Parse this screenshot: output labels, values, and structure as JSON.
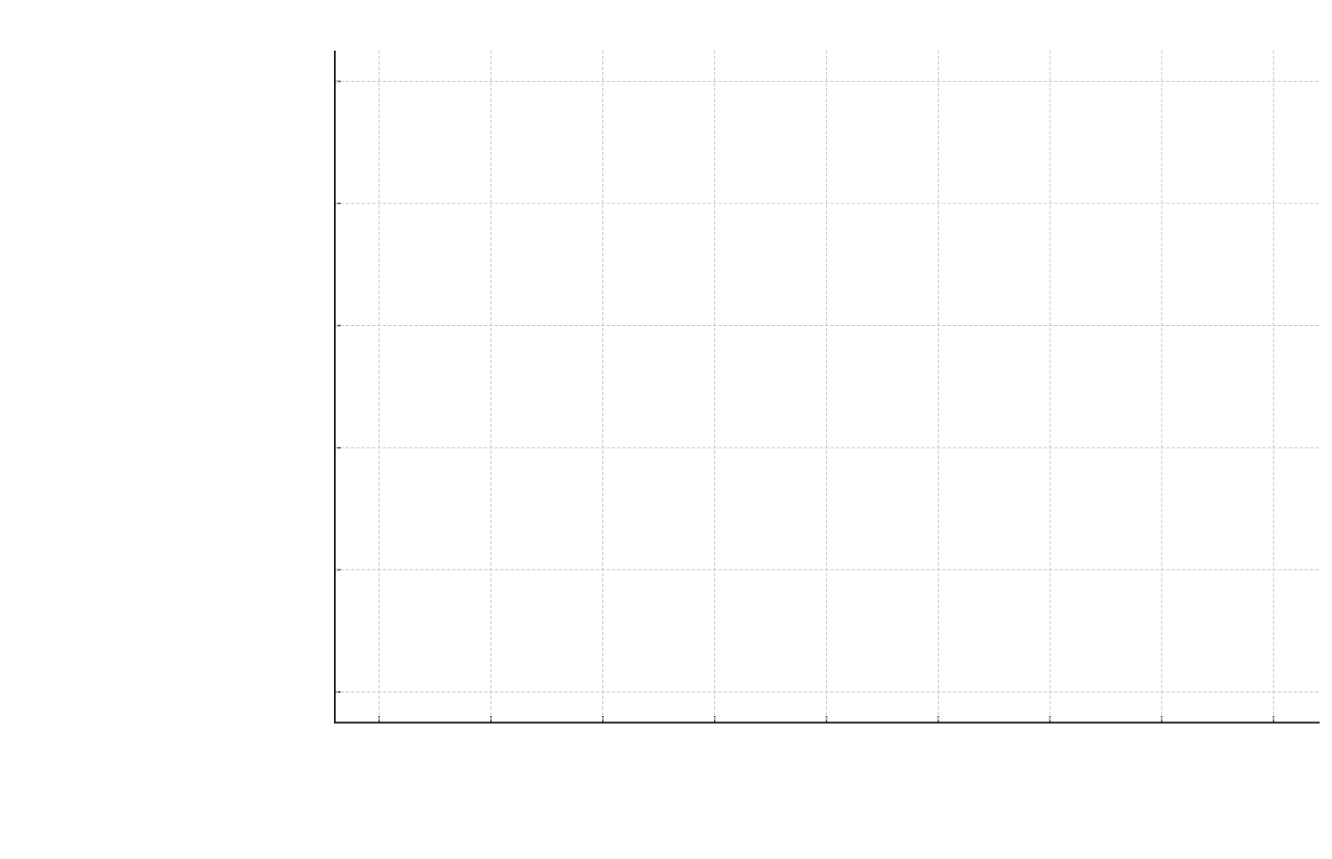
{
  "chart_data": {
    "type": "line",
    "grid": true,
    "xticks": [
      null,
      null,
      null,
      null,
      null,
      null,
      null,
      null,
      null
    ],
    "yticks": [
      null,
      null,
      null,
      null,
      null,
      null
    ]
  }
}
